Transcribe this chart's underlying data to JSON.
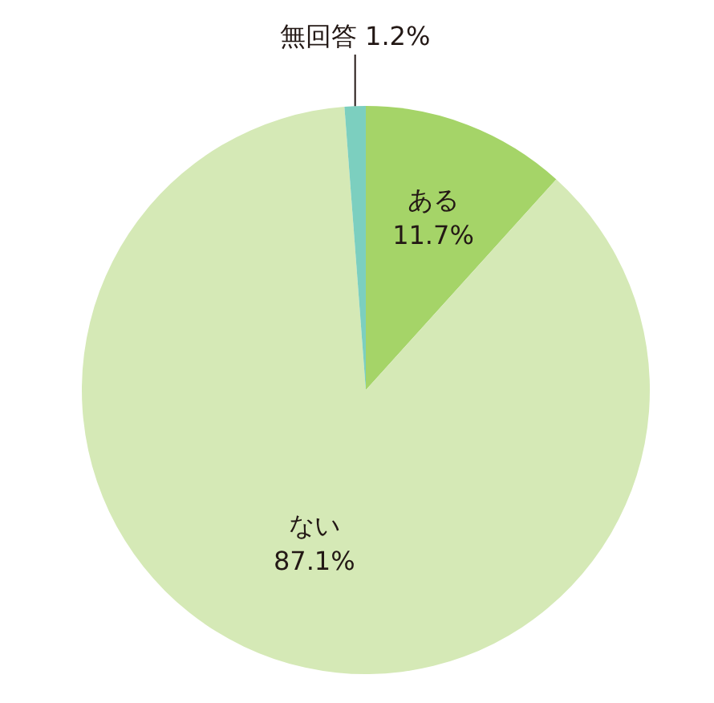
{
  "chart_data": {
    "type": "pie",
    "categories": [
      "ある",
      "ない",
      "無回答"
    ],
    "values": [
      11.7,
      87.1,
      1.2
    ],
    "colors": [
      "#a5d468",
      "#d5e9b6",
      "#7ccfbf"
    ],
    "value_labels": [
      "11.7%",
      "87.1%",
      "1.2%"
    ]
  }
}
